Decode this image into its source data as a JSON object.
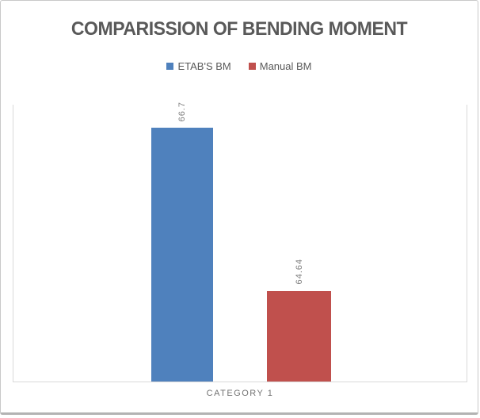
{
  "chart": {
    "title": "COMPARISSION OF BENDING MOMENT",
    "category_label": "CATEGORY 1"
  },
  "chart_data": {
    "type": "bar",
    "title": "COMPARISSION OF BENDING MOMENT",
    "categories": [
      "CATEGORY 1"
    ],
    "series": [
      {
        "name": "ETAB'S BM",
        "values": [
          66.7
        ],
        "color": "#4F81BD"
      },
      {
        "name": "Manual BM",
        "values": [
          64.64
        ],
        "color": "#C0504D"
      }
    ],
    "data_labels": [
      "66.7",
      "64.64"
    ],
    "data_label_rotation": -90,
    "xlabel": "",
    "ylabel": "",
    "ylim": [
      63.5,
      67
    ],
    "y_axis_visible": false,
    "x_axis_visible": true,
    "grid": false,
    "legend_position": "top",
    "colors": {
      "title_text": "#595959",
      "legend_text": "#595959",
      "data_label_text": "#7f7f7f",
      "category_text": "#737373",
      "axis_line": "#d9d9d9",
      "frame_border": "#c9c9c9"
    }
  }
}
